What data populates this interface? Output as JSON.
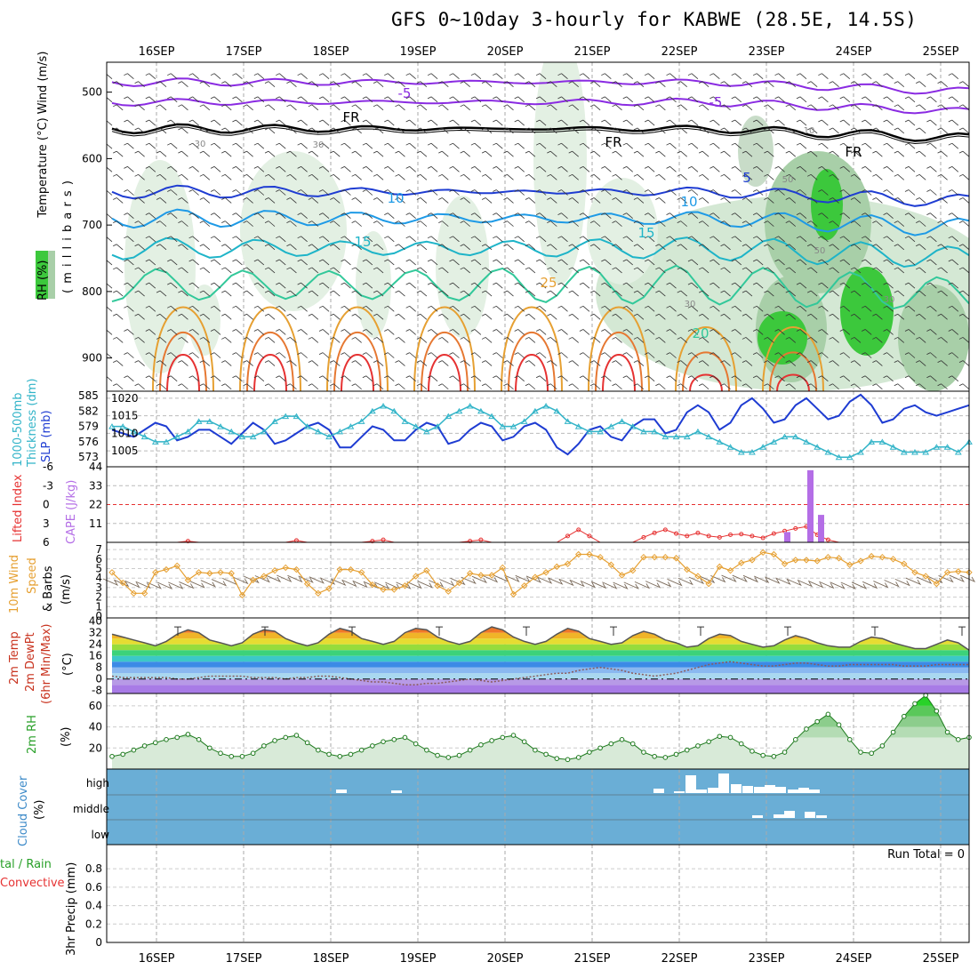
{
  "title": "GFS 0~10day 3-hourly for KABWE (28.5E, 14.5S)",
  "date_labels": [
    "16SEP",
    "17SEP",
    "18SEP",
    "19SEP",
    "20SEP",
    "21SEP",
    "22SEP",
    "23SEP",
    "24SEP",
    "25SEP"
  ],
  "panels": {
    "upper": {
      "labels": [
        "RH (%)",
        "Temperature (°C)",
        "Wind (m/s)",
        "( m i l l i b a r s )"
      ],
      "ticks": [
        "500",
        "600",
        "700",
        "800",
        "900"
      ],
      "contour_labels": [
        "-5",
        "-5",
        "FR",
        "FR",
        "FR",
        "10",
        "10",
        "5",
        "15",
        "15",
        "25",
        "20",
        "30",
        "30",
        "30",
        "50",
        "50",
        "30",
        "10"
      ]
    },
    "pressure": {
      "labels": [
        "1000-500mb",
        "Thickness (dm)",
        "SLP (mb)"
      ],
      "left_ticks": [
        "585",
        "582",
        "579",
        "576",
        "573"
      ],
      "right_ticks": [
        "1020",
        "1015",
        "1010",
        "1005"
      ]
    },
    "cape": {
      "labels": [
        "Lifted Index",
        "CAPE (J/kg)"
      ],
      "left_ticks": [
        "-6",
        "-3",
        "0",
        "3",
        "6"
      ],
      "right_ticks": [
        "44",
        "33",
        "22",
        "11"
      ]
    },
    "wind": {
      "labels": [
        "10m Wind",
        "Speed",
        "& Barbs",
        "(m/s)"
      ],
      "ticks": [
        "7",
        "6",
        "5",
        "4",
        "3",
        "2",
        "1",
        "0"
      ]
    },
    "temp": {
      "labels": [
        "2m Temp",
        "2m DewPt",
        "(6hr Min/Max)",
        "(°C)"
      ],
      "ticks": [
        "40",
        "32",
        "24",
        "16",
        "8",
        "0",
        "-8"
      ]
    },
    "rh": {
      "labels": [
        "2m RH",
        "(%)"
      ],
      "ticks": [
        "60",
        "40",
        "20"
      ]
    },
    "cloud": {
      "labels": [
        "Cloud Cover",
        "(%)"
      ],
      "ticks": [
        "high",
        "middle",
        "low"
      ]
    },
    "precip": {
      "labels": [
        "3hr Precip (mm)",
        "tal / Rain",
        "Convective"
      ],
      "ticks": [
        "0.8",
        "0.6",
        "0.4",
        "0.2",
        "0"
      ],
      "run_total": "Run Total = 0"
    }
  },
  "colors": {
    "rh_green": "#3cc83c",
    "slp": "#1e3cd2",
    "thickness": "#32b4c8",
    "cape": "#b46ee6",
    "lifted": "#e63232",
    "wind": "#e6a032",
    "cloud_bg": "#6aaed6"
  },
  "chart_data": [
    {
      "type": "line",
      "name": "SLP (mb)",
      "x_start": "15SEP 12Z",
      "x_step_hours": 3,
      "ylim": [
        1003,
        1022
      ],
      "values": [
        1011,
        1010,
        1009,
        1011,
        1013,
        1012,
        1008,
        1009,
        1011,
        1011,
        1009,
        1007,
        1010,
        1013,
        1011,
        1007,
        1008,
        1010,
        1012,
        1013,
        1011,
        1006,
        1006,
        1009,
        1012,
        1011,
        1008,
        1008,
        1011,
        1013,
        1012,
        1007,
        1008,
        1011,
        1013,
        1012,
        1008,
        1009,
        1012,
        1013,
        1011,
        1006,
        1004,
        1007,
        1011,
        1012,
        1009,
        1008,
        1012,
        1014,
        1014,
        1010,
        1011,
        1016,
        1018,
        1016,
        1011,
        1013,
        1018,
        1020,
        1017,
        1013,
        1014,
        1018,
        1020,
        1017,
        1014,
        1015,
        1019,
        1021,
        1018,
        1013,
        1014,
        1017,
        1018,
        1016,
        1015,
        1016,
        1017,
        1018
      ]
    },
    {
      "type": "line",
      "name": "1000-500mb Thickness (dm)",
      "ylim": [
        572,
        585
      ],
      "values": [
        579,
        579,
        578,
        577,
        576,
        576,
        577,
        578,
        580,
        580,
        579,
        578,
        577,
        577,
        578,
        580,
        581,
        581,
        579,
        578,
        577,
        578,
        579,
        580,
        582,
        583,
        582,
        580,
        579,
        578,
        579,
        581,
        582,
        583,
        582,
        581,
        579,
        579,
        580,
        582,
        583,
        582,
        580,
        579,
        578,
        578,
        579,
        580,
        579,
        578,
        578,
        577,
        577,
        577,
        578,
        577,
        576,
        575,
        574,
        574,
        575,
        576,
        577,
        577,
        576,
        575,
        574,
        573,
        573,
        574,
        576,
        576,
        575,
        574,
        574,
        574,
        575,
        575,
        574,
        576
      ]
    },
    {
      "type": "line",
      "name": "Lifted Index",
      "ylim": [
        6,
        -6
      ],
      "values": [
        6,
        6,
        6,
        6,
        6,
        6,
        6,
        5.8,
        6,
        6,
        6,
        6,
        6,
        6,
        6,
        6,
        6,
        5.7,
        6,
        6,
        6,
        6,
        6,
        6,
        5.8,
        5.6,
        6,
        6,
        6,
        6,
        6,
        6,
        6,
        5.8,
        5.6,
        6,
        6,
        6,
        6,
        6,
        6,
        6,
        5,
        4,
        5,
        6,
        6,
        6,
        6,
        5.2,
        4.5,
        4,
        4.6,
        5,
        4.5,
        5,
        5.2,
        4.8,
        4.7,
        5,
        5.3,
        4.6,
        4.2,
        3.8,
        3.5,
        4.8,
        5.6,
        6,
        6,
        6,
        6,
        6,
        6,
        6,
        6,
        6,
        6,
        6,
        6,
        6
      ]
    },
    {
      "type": "bar",
      "name": "CAPE (J/kg)",
      "categories": [
        "23SEP 00Z",
        "23SEP 12Z",
        "23SEP 15Z"
      ],
      "values": [
        6,
        42,
        16
      ],
      "ylim": [
        0,
        44
      ]
    },
    {
      "type": "line",
      "name": "10m Wind Speed (m/s)",
      "ylim": [
        0,
        7.5
      ],
      "values": [
        4.6,
        3.5,
        2.4,
        2.4,
        4.6,
        4.9,
        5.3,
        3.8,
        4.6,
        4.5,
        4.6,
        4.5,
        2.2,
        3.8,
        4.2,
        4.8,
        5.1,
        4.9,
        3.4,
        2.4,
        2.9,
        4.9,
        4.9,
        4.6,
        3.3,
        2.8,
        2.8,
        3.2,
        4.2,
        4.8,
        3.2,
        2.6,
        3.5,
        4.5,
        4.3,
        4.3,
        5.1,
        2.3,
        3.2,
        4.1,
        4.6,
        5.2,
        5.5,
        6.5,
        6.5,
        6.2,
        5.4,
        4.3,
        4.8,
        6.2,
        6.2,
        6.2,
        6.1,
        4.9,
        4.2,
        3.4,
        5.2,
        4.8,
        5.6,
        5.9,
        6.7,
        6.5,
        5.5,
        5.9,
        5.9,
        5.8,
        6.2,
        6.1,
        5.4,
        5.8,
        6.3,
        6.2,
        6.0,
        5.5,
        4.6,
        4.2,
        3.4,
        4.6,
        4.7,
        4.6
      ]
    },
    {
      "type": "area",
      "name": "2m Temp (°C)",
      "ylim": [
        -10,
        41
      ],
      "values": [
        31,
        29,
        27,
        25,
        23,
        26,
        31,
        34,
        32,
        27,
        25,
        23,
        25,
        31,
        34,
        33,
        28,
        25,
        23,
        25,
        31,
        35,
        33,
        28,
        26,
        24,
        26,
        32,
        35,
        34,
        29,
        26,
        24,
        26,
        32,
        36,
        34,
        29,
        26,
        24,
        26,
        31,
        35,
        33,
        28,
        26,
        24,
        25,
        30,
        33,
        31,
        27,
        25,
        22,
        23,
        28,
        31,
        30,
        26,
        24,
        22,
        23,
        27,
        30,
        28,
        25,
        23,
        22,
        22,
        26,
        29,
        28,
        25,
        23,
        21,
        21,
        24,
        27,
        25,
        20
      ]
    },
    {
      "type": "line",
      "name": "2m DewPt (°C)",
      "values": [
        2,
        1,
        1,
        1,
        1,
        1,
        0,
        0,
        1,
        2,
        2,
        2,
        2,
        1,
        1,
        1,
        0,
        1,
        1,
        2,
        2,
        1,
        0,
        -1,
        -2,
        -2,
        -3,
        -4,
        -4,
        -3,
        -3,
        -2,
        -1,
        0,
        -1,
        -2,
        -1,
        0,
        1,
        2,
        3,
        4,
        4,
        6,
        7,
        8,
        7,
        6,
        4,
        3,
        2,
        3,
        4,
        6,
        8,
        10,
        11,
        12,
        11,
        10,
        9,
        9,
        10,
        11,
        11,
        10,
        9,
        9,
        10,
        10,
        10,
        10,
        10,
        9,
        9,
        9,
        10,
        10,
        10,
        10
      ]
    },
    {
      "type": "area",
      "name": "2m RH (%)",
      "ylim": [
        0,
        70
      ],
      "values": [
        12,
        14,
        18,
        22,
        25,
        28,
        30,
        33,
        28,
        20,
        15,
        12,
        12,
        15,
        22,
        27,
        30,
        32,
        25,
        18,
        14,
        12,
        14,
        18,
        22,
        26,
        28,
        30,
        24,
        18,
        13,
        11,
        13,
        18,
        23,
        27,
        30,
        32,
        26,
        18,
        14,
        10,
        9,
        11,
        16,
        20,
        24,
        28,
        24,
        16,
        12,
        11,
        14,
        18,
        22,
        26,
        31,
        30,
        24,
        17,
        13,
        12,
        16,
        28,
        38,
        45,
        52,
        42,
        28,
        16,
        15,
        22,
        35,
        50,
        62,
        70,
        55,
        35,
        28,
        30
      ]
    }
  ]
}
